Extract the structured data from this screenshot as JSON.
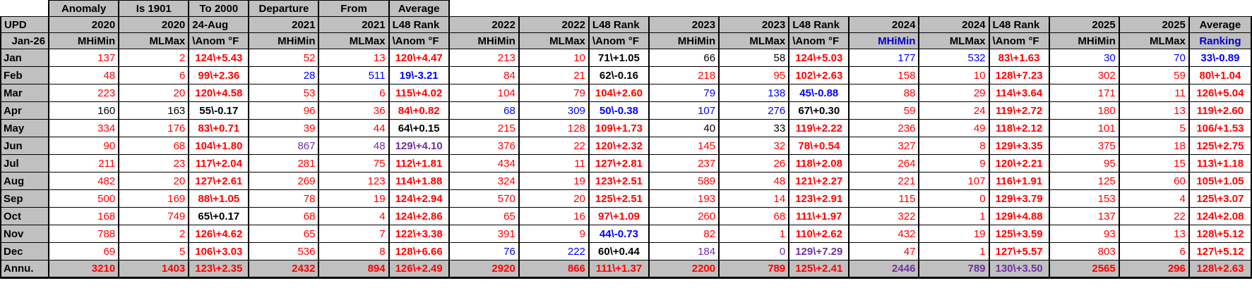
{
  "palette": {
    "red": "#FF0000",
    "blue": "#0000FF",
    "purple": "#7030A0",
    "black": "#000000",
    "header_bg": "#C0C0C0",
    "header_blue": "#0000CC",
    "grid": "#000000"
  },
  "title_row": {
    "labels": [
      "Anomaly",
      "Is 1901",
      "To 2000",
      "Departure",
      "From",
      "Average"
    ]
  },
  "header_row2": [
    "UPD",
    "2020",
    "2020",
    "24-Aug",
    "2021",
    "2021",
    "L48 Rank",
    "2022",
    "2022",
    "L48 Rank",
    "2023",
    "2023",
    "L48 Rank",
    "2024",
    "2024",
    "L48 Rank",
    "2025",
    "2025",
    "Average"
  ],
  "header_row3": [
    "Jan-26",
    "MHiMin",
    "MLMax",
    "\\Anom °F",
    "MHiMin",
    "MLMax",
    "\\Anom °F",
    "MHiMin",
    "MLMax",
    "\\Anom °F",
    "MHiMin",
    "MLMax",
    "\\Anom °F",
    "MHiMin",
    "MLMax",
    "\\Anom °F",
    "MHiMin",
    "MLMax",
    "Ranking"
  ],
  "header_row3_blue_cols": [
    13,
    18
  ],
  "rank_columns": [
    3,
    6,
    9,
    12,
    15,
    18
  ],
  "rows": [
    {
      "label": "Jan",
      "cells": [
        [
          "137",
          "r"
        ],
        [
          "2",
          "r"
        ],
        [
          "124\\+5.43",
          "r"
        ],
        [
          "52",
          "r"
        ],
        [
          "13",
          "r"
        ],
        [
          "120\\+4.47",
          "r"
        ],
        [
          "213",
          "r"
        ],
        [
          "10",
          "r"
        ],
        [
          "71\\+1.05",
          "k"
        ],
        [
          "66",
          "k"
        ],
        [
          "58",
          "k"
        ],
        [
          "124\\+5.03",
          "r"
        ],
        [
          "177",
          "b",
          "bd"
        ],
        [
          "532",
          "b",
          "bd"
        ],
        [
          "83\\+1.63",
          "r"
        ],
        [
          "30",
          "b"
        ],
        [
          "70",
          "b"
        ],
        [
          "33\\-0.89",
          "b"
        ]
      ]
    },
    {
      "label": "Feb",
      "cells": [
        [
          "48",
          "r"
        ],
        [
          "6",
          "r"
        ],
        [
          "99\\+2.36",
          "r"
        ],
        [
          "28",
          "b"
        ],
        [
          "511",
          "b"
        ],
        [
          "19\\-3.21",
          "b"
        ],
        [
          "84",
          "r"
        ],
        [
          "21",
          "r"
        ],
        [
          "62\\-0.16",
          "k"
        ],
        [
          "218",
          "r"
        ],
        [
          "95",
          "r"
        ],
        [
          "102\\+2.63",
          "r"
        ],
        [
          "158",
          "r"
        ],
        [
          "10",
          "r"
        ],
        [
          "128\\+7.23",
          "r"
        ],
        [
          "302",
          "r"
        ],
        [
          "59",
          "r"
        ],
        [
          "80\\+1.04",
          "r"
        ]
      ]
    },
    {
      "label": "Mar",
      "cells": [
        [
          "223",
          "r"
        ],
        [
          "20",
          "r"
        ],
        [
          "120\\+4.58",
          "r"
        ],
        [
          "53",
          "r"
        ],
        [
          "6",
          "r"
        ],
        [
          "115\\+4.02",
          "r"
        ],
        [
          "104",
          "r"
        ],
        [
          "79",
          "r"
        ],
        [
          "104\\+2.60",
          "r"
        ],
        [
          "79",
          "b"
        ],
        [
          "138",
          "b"
        ],
        [
          "45\\-0.88",
          "b"
        ],
        [
          "88",
          "r"
        ],
        [
          "29",
          "r"
        ],
        [
          "114\\+3.64",
          "r"
        ],
        [
          "171",
          "r"
        ],
        [
          "11",
          "r"
        ],
        [
          "126\\+5.04",
          "r"
        ]
      ]
    },
    {
      "label": "Apr",
      "cells": [
        [
          "160",
          "k"
        ],
        [
          "163",
          "k"
        ],
        [
          "55\\-0.17",
          "k"
        ],
        [
          "96",
          "r"
        ],
        [
          "36",
          "r"
        ],
        [
          "84\\+0.82",
          "r"
        ],
        [
          "68",
          "b"
        ],
        [
          "309",
          "b"
        ],
        [
          "50\\-0.38",
          "b"
        ],
        [
          "107",
          "b"
        ],
        [
          "276",
          "b"
        ],
        [
          "67\\+0.30",
          "k"
        ],
        [
          "59",
          "r"
        ],
        [
          "24",
          "r"
        ],
        [
          "119\\+2.72",
          "r"
        ],
        [
          "180",
          "r"
        ],
        [
          "13",
          "r"
        ],
        [
          "119\\+2.60",
          "r"
        ]
      ]
    },
    {
      "label": "May",
      "cells": [
        [
          "334",
          "r"
        ],
        [
          "176",
          "r"
        ],
        [
          "83\\+0.71",
          "r"
        ],
        [
          "39",
          "r"
        ],
        [
          "44",
          "r"
        ],
        [
          "64\\+0.15",
          "k"
        ],
        [
          "215",
          "r"
        ],
        [
          "128",
          "r"
        ],
        [
          "109\\+1.73",
          "r"
        ],
        [
          "40",
          "k"
        ],
        [
          "33",
          "k"
        ],
        [
          "119\\+2.22",
          "r"
        ],
        [
          "236",
          "r"
        ],
        [
          "49",
          "r"
        ],
        [
          "118\\+2.12",
          "r"
        ],
        [
          "101",
          "r"
        ],
        [
          "5",
          "r"
        ],
        [
          "106/+1.53",
          "r"
        ]
      ]
    },
    {
      "label": "Jun",
      "cells": [
        [
          "90",
          "r"
        ],
        [
          "68",
          "r"
        ],
        [
          "104\\+1.80",
          "r"
        ],
        [
          "867",
          "p",
          "bd"
        ],
        [
          "48",
          "p",
          "bd"
        ],
        [
          "129\\+4.10",
          "p"
        ],
        [
          "376",
          "r"
        ],
        [
          "22",
          "r"
        ],
        [
          "120\\+2.32",
          "r"
        ],
        [
          "145",
          "r"
        ],
        [
          "32",
          "r"
        ],
        [
          "78\\+0.54",
          "r"
        ],
        [
          "327",
          "r"
        ],
        [
          "8",
          "r"
        ],
        [
          "129\\+3.35",
          "r"
        ],
        [
          "375",
          "r"
        ],
        [
          "18",
          "r"
        ],
        [
          "125\\+2.75",
          "r"
        ]
      ]
    },
    {
      "label": "Jul",
      "cells": [
        [
          "211",
          "r"
        ],
        [
          "23",
          "r"
        ],
        [
          "117\\+2.04",
          "r"
        ],
        [
          "281",
          "r"
        ],
        [
          "75",
          "r"
        ],
        [
          "112\\+1.81",
          "r"
        ],
        [
          "434",
          "r"
        ],
        [
          "11",
          "r"
        ],
        [
          "127\\+2.81",
          "r"
        ],
        [
          "237",
          "r"
        ],
        [
          "26",
          "r"
        ],
        [
          "118\\+2.08",
          "r"
        ],
        [
          "264",
          "r"
        ],
        [
          "9",
          "r"
        ],
        [
          "120\\+2.21",
          "r"
        ],
        [
          "95",
          "r"
        ],
        [
          "15",
          "r"
        ],
        [
          "113\\+1.18",
          "r"
        ]
      ]
    },
    {
      "label": "Aug",
      "cells": [
        [
          "482",
          "r"
        ],
        [
          "20",
          "r"
        ],
        [
          "127\\+2.61",
          "r"
        ],
        [
          "269",
          "r"
        ],
        [
          "123",
          "r"
        ],
        [
          "114\\+1.88",
          "r"
        ],
        [
          "324",
          "r"
        ],
        [
          "19",
          "r"
        ],
        [
          "123\\+2.51",
          "r"
        ],
        [
          "589",
          "r"
        ],
        [
          "48",
          "r"
        ],
        [
          "121\\+2.27",
          "r"
        ],
        [
          "221",
          "r"
        ],
        [
          "107",
          "r"
        ],
        [
          "116\\+1.91",
          "r"
        ],
        [
          "125",
          "r"
        ],
        [
          "60",
          "r"
        ],
        [
          "105\\+1.05",
          "r"
        ]
      ]
    },
    {
      "label": "Sep",
      "cells": [
        [
          "500",
          "r"
        ],
        [
          "169",
          "r"
        ],
        [
          "88\\+1.05",
          "r"
        ],
        [
          "78",
          "r"
        ],
        [
          "19",
          "r"
        ],
        [
          "124\\+2.94",
          "r"
        ],
        [
          "570",
          "r"
        ],
        [
          "20",
          "r"
        ],
        [
          "125\\+2.51",
          "r"
        ],
        [
          "193",
          "r"
        ],
        [
          "14",
          "r"
        ],
        [
          "123\\+2.91",
          "r"
        ],
        [
          "115",
          "r"
        ],
        [
          "0",
          "r"
        ],
        [
          "129\\+3.79",
          "r"
        ],
        [
          "153",
          "r"
        ],
        [
          "4",
          "r"
        ],
        [
          "125\\+3.07",
          "r"
        ]
      ]
    },
    {
      "label": "Oct",
      "cells": [
        [
          "168",
          "r"
        ],
        [
          "749",
          "r"
        ],
        [
          "65\\+0.17",
          "k"
        ],
        [
          "68",
          "r"
        ],
        [
          "4",
          "r"
        ],
        [
          "124\\+2.86",
          "r"
        ],
        [
          "65",
          "r"
        ],
        [
          "16",
          "r"
        ],
        [
          "97\\+1.09",
          "r"
        ],
        [
          "260",
          "r"
        ],
        [
          "68",
          "r"
        ],
        [
          "111\\+1.97",
          "r"
        ],
        [
          "322",
          "r"
        ],
        [
          "1",
          "r"
        ],
        [
          "129\\+4.88",
          "r"
        ],
        [
          "137",
          "r"
        ],
        [
          "22",
          "r"
        ],
        [
          "124\\+2.08",
          "r"
        ]
      ]
    },
    {
      "label": "Nov",
      "cells": [
        [
          "788",
          "r"
        ],
        [
          "2",
          "r"
        ],
        [
          "126\\+4.62",
          "r"
        ],
        [
          "65",
          "r"
        ],
        [
          "7",
          "r"
        ],
        [
          "122\\+3.38",
          "r"
        ],
        [
          "391",
          "r"
        ],
        [
          "9",
          "r"
        ],
        [
          "44\\-0.73",
          "b"
        ],
        [
          "82",
          "r"
        ],
        [
          "1",
          "r"
        ],
        [
          "110\\+2.62",
          "r"
        ],
        [
          "432",
          "r"
        ],
        [
          "19",
          "r"
        ],
        [
          "125\\+3.59",
          "r"
        ],
        [
          "93",
          "r"
        ],
        [
          "13",
          "r"
        ],
        [
          "128\\+5.12",
          "r"
        ]
      ]
    },
    {
      "label": "Dec",
      "cells": [
        [
          "69",
          "r"
        ],
        [
          "5",
          "r"
        ],
        [
          "106\\+3.03",
          "r"
        ],
        [
          "536",
          "r"
        ],
        [
          "8",
          "r"
        ],
        [
          "128\\+6.66",
          "r"
        ],
        [
          "76",
          "b"
        ],
        [
          "222",
          "b"
        ],
        [
          "60\\+0.44",
          "k"
        ],
        [
          "184",
          "p",
          "bd"
        ],
        [
          "0",
          "p",
          "bd"
        ],
        [
          "129\\+7.29",
          "p"
        ],
        [
          "47",
          "r"
        ],
        [
          "1",
          "r"
        ],
        [
          "127\\+5.57",
          "r"
        ],
        [
          "803",
          "r"
        ],
        [
          "6",
          "r"
        ],
        [
          "127\\+5.12",
          "r"
        ]
      ]
    }
  ],
  "annual_row": {
    "label": "Annu.",
    "cells": [
      [
        "3210",
        "r"
      ],
      [
        "1403",
        "r"
      ],
      [
        "123\\+2.35",
        "r"
      ],
      [
        "2432",
        "r"
      ],
      [
        "894",
        "r"
      ],
      [
        "126\\+2.49",
        "r"
      ],
      [
        "2920",
        "r"
      ],
      [
        "866",
        "r"
      ],
      [
        "111\\+1.37",
        "r"
      ],
      [
        "2200",
        "r"
      ],
      [
        "789",
        "r"
      ],
      [
        "125\\+2.41",
        "r"
      ],
      [
        "2446",
        "p"
      ],
      [
        "789",
        "p"
      ],
      [
        "130\\+3.50",
        "p"
      ],
      [
        "2565",
        "r"
      ],
      [
        "296",
        "r"
      ],
      [
        "128\\+2.63",
        "r"
      ]
    ]
  }
}
